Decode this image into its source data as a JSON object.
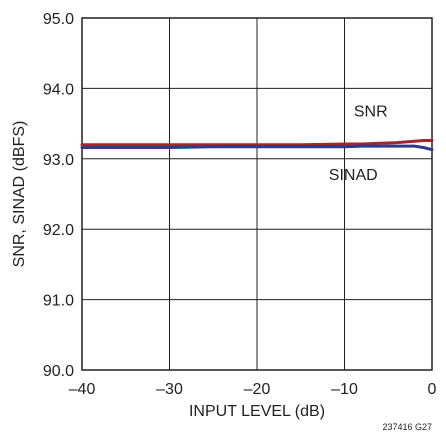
{
  "chart_data": {
    "type": "line",
    "xlabel": "INPUT LEVEL (dB)",
    "ylabel": "SNR, SINAD (dBFS)",
    "xlim": [
      -40,
      0
    ],
    "ylim": [
      90.0,
      95.0
    ],
    "x_ticks": [
      -40,
      -30,
      -20,
      -10,
      0
    ],
    "x_tick_labels": [
      "–40",
      "–30",
      "–20",
      "–10",
      "0"
    ],
    "y_ticks": [
      90.0,
      91.0,
      92.0,
      93.0,
      94.0,
      95.0
    ],
    "y_tick_labels": [
      "90.0",
      "91.0",
      "92.0",
      "93.0",
      "94.0",
      "95.0"
    ],
    "grid": true,
    "series": [
      {
        "name": "SNR",
        "color": "#a0282d",
        "x": [
          -40,
          -35,
          -30,
          -25,
          -20,
          -15,
          -10,
          -8,
          -6,
          -4,
          -2,
          -1,
          0
        ],
        "y": [
          93.2,
          93.2,
          93.2,
          93.2,
          93.2,
          93.2,
          93.21,
          93.21,
          93.22,
          93.23,
          93.25,
          93.26,
          93.26
        ]
      },
      {
        "name": "SINAD",
        "color": "#2e3a8c",
        "x": [
          -40,
          -35,
          -30,
          -25,
          -20,
          -15,
          -10,
          -8,
          -6,
          -4,
          -2,
          -1,
          0
        ],
        "y": [
          93.16,
          93.16,
          93.16,
          93.17,
          93.17,
          93.17,
          93.17,
          93.18,
          93.18,
          93.18,
          93.18,
          93.16,
          93.13
        ]
      }
    ],
    "annotations": [
      {
        "text": "SNR",
        "x": -7,
        "y": 93.6
      },
      {
        "text": "SINAD",
        "x": -9,
        "y": 92.7
      }
    ],
    "figure_id": "237416 G27"
  }
}
